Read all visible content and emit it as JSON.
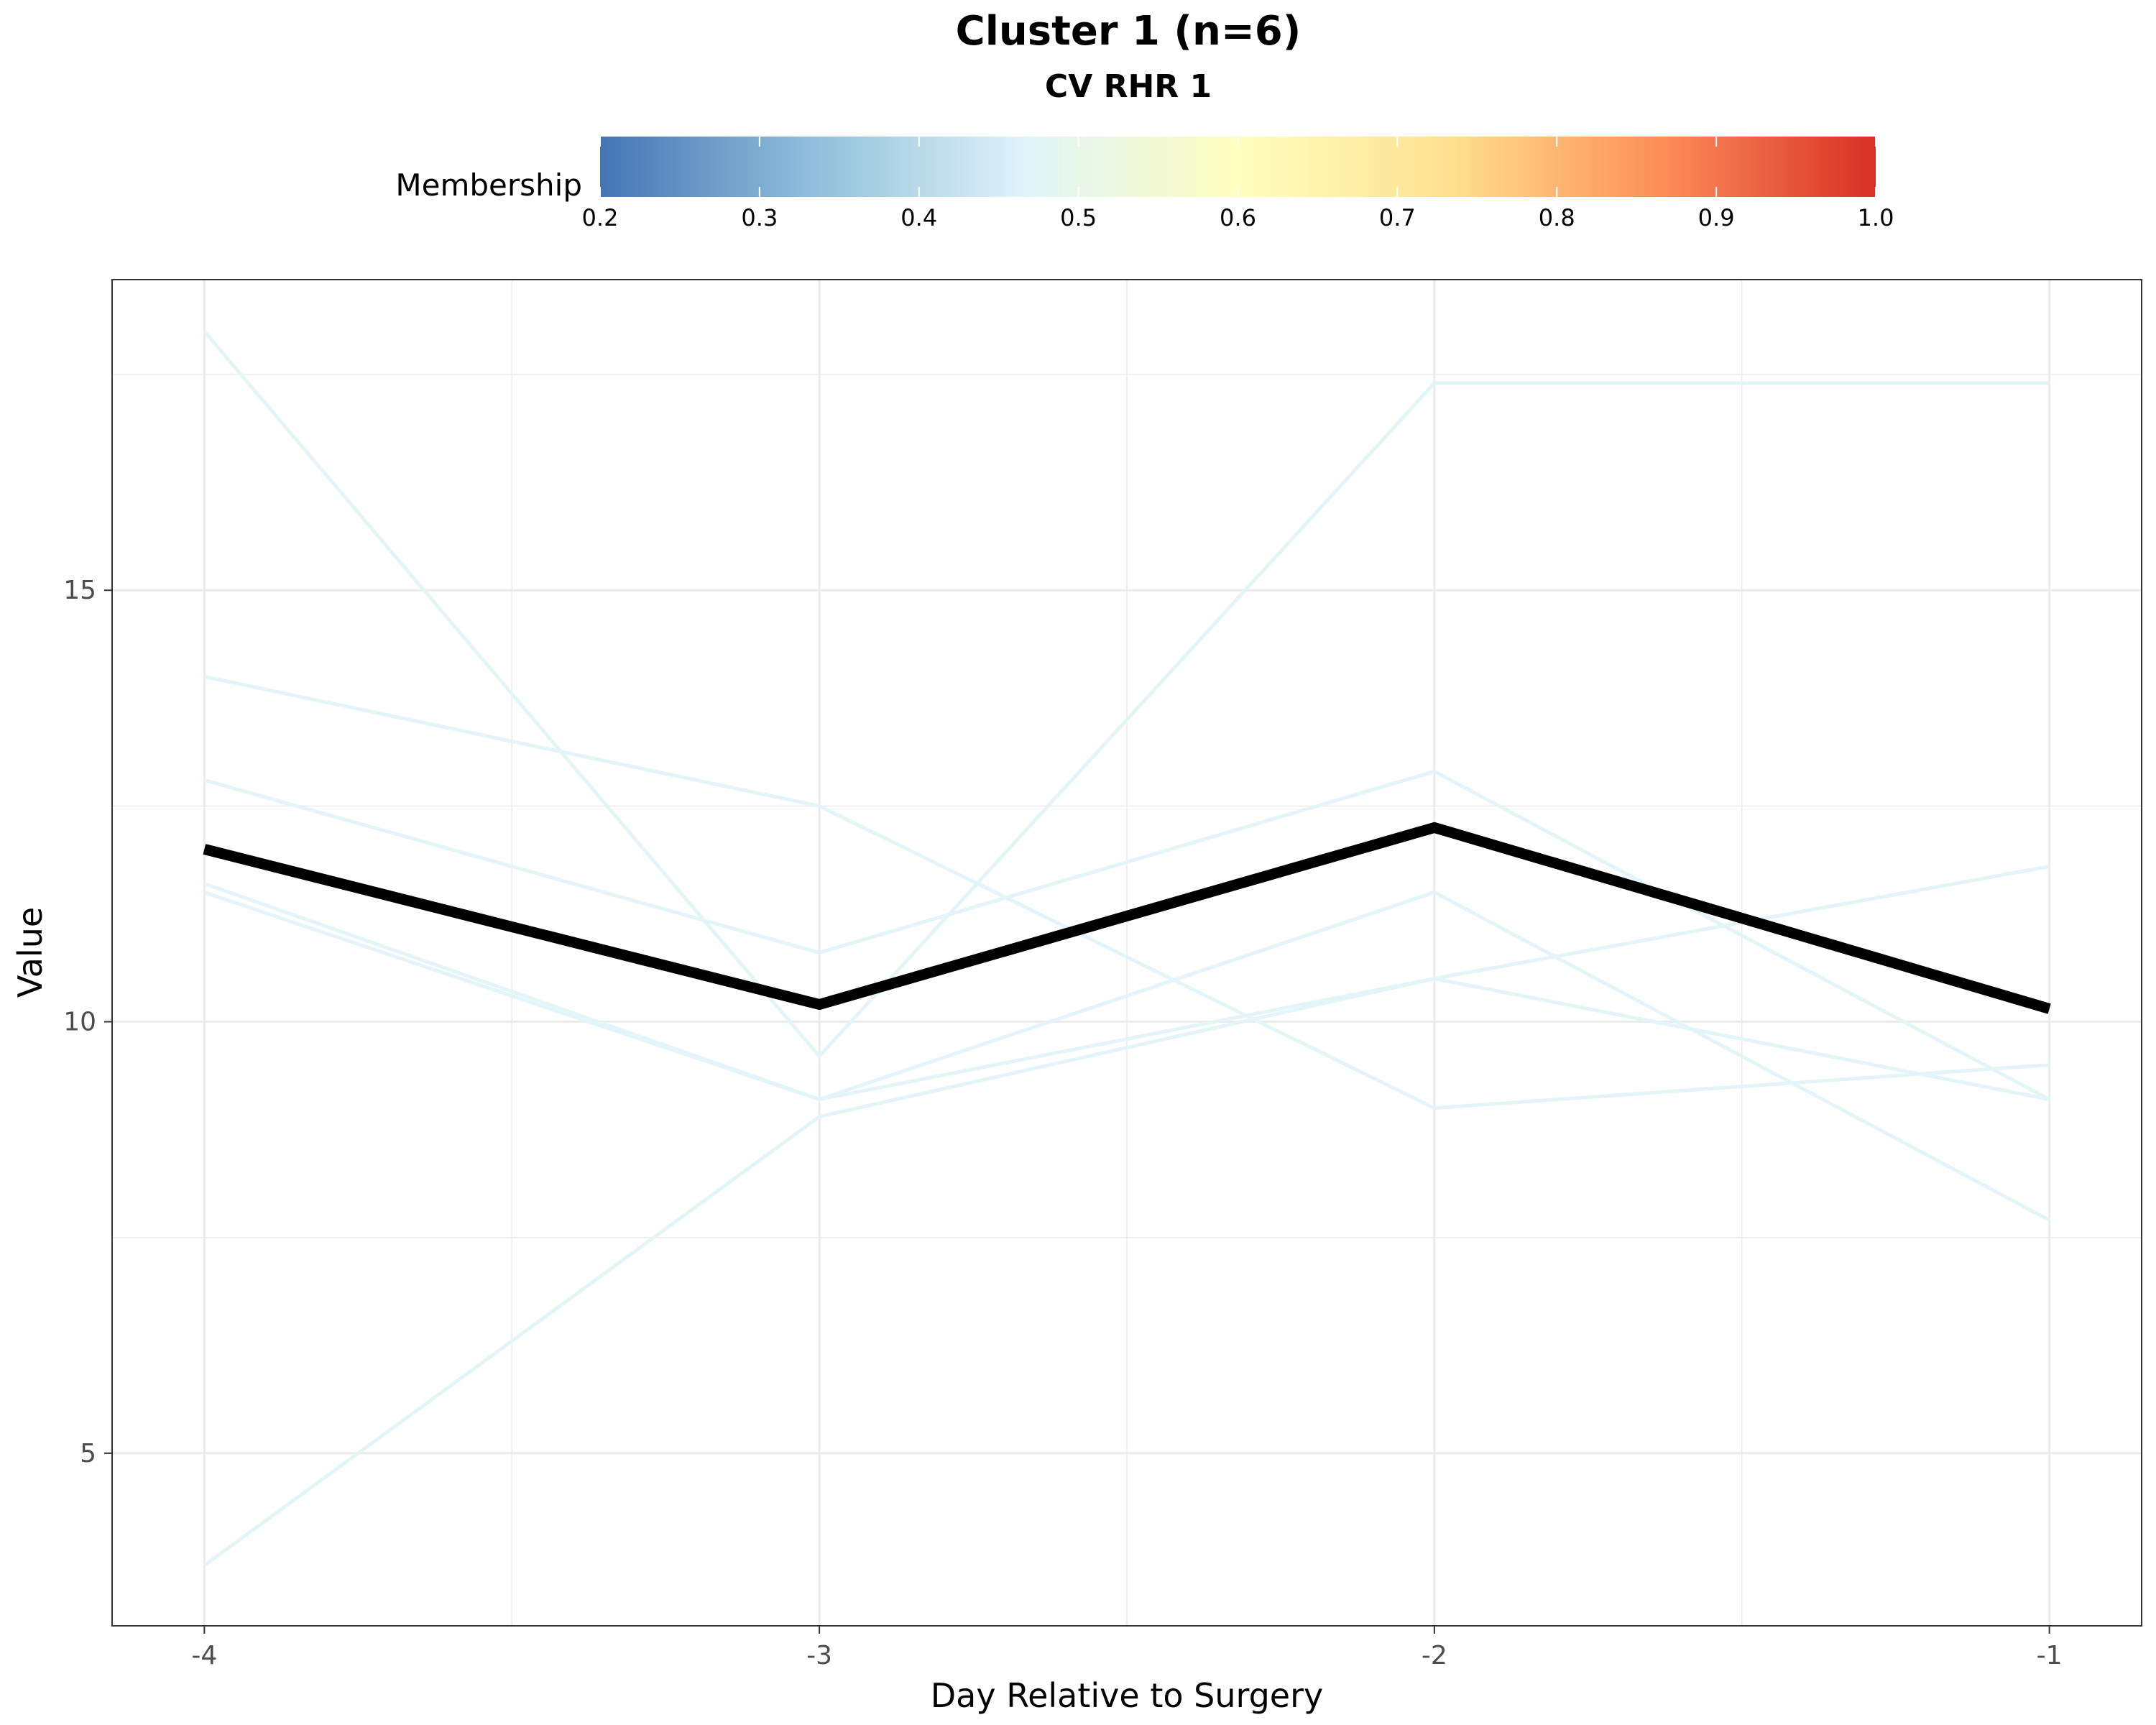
{
  "chart_data": {
    "type": "line",
    "title": "Cluster 1 (n=6)",
    "subtitle": "CV RHR 1",
    "xlabel": "Day Relative to Surgery",
    "ylabel": "Value",
    "x": [
      -4,
      -3,
      -2,
      -1
    ],
    "x_tick_labels": [
      "-4",
      "-3",
      "-2",
      "-1"
    ],
    "xlim": [
      -4.15,
      -0.85
    ],
    "ylim": [
      3.0,
      18.6
    ],
    "y_ticks": [
      5,
      10,
      15
    ],
    "y_tick_labels": [
      "5",
      "10",
      "15"
    ],
    "grid": true,
    "legend": {
      "title": "Membership",
      "placement": "top",
      "range": [
        0.2,
        1.0
      ],
      "tick_labels": [
        "0.2",
        "0.3",
        "0.4",
        "0.5",
        "0.6",
        "0.7",
        "0.8",
        "0.9",
        "1.0"
      ],
      "colors": [
        "#4575b4",
        "#91bfdb",
        "#e0f3f8",
        "#ffffbf",
        "#fee090",
        "#fc8d59",
        "#d73027"
      ]
    },
    "series": [
      {
        "values": [
          18.0,
          9.6,
          17.4,
          17.4
        ],
        "membership": 0.45,
        "color": "#e3f5f8"
      },
      {
        "values": [
          14.0,
          12.5,
          9.0,
          9.5
        ],
        "membership": 0.45,
        "color": "#e3f5f8"
      },
      {
        "values": [
          12.8,
          10.8,
          12.9,
          9.1
        ],
        "membership": 0.45,
        "color": "#e3f5f8"
      },
      {
        "values": [
          11.6,
          9.1,
          11.5,
          7.7
        ],
        "membership": 0.45,
        "color": "#e3f5f8"
      },
      {
        "values": [
          3.7,
          8.9,
          10.5,
          11.8
        ],
        "membership": 0.45,
        "color": "#e3f5f8"
      },
      {
        "values": [
          11.5,
          9.1,
          10.5,
          9.1
        ],
        "membership": 0.45,
        "color": "#e3f5f8"
      }
    ],
    "centroid": {
      "values": [
        12.0,
        10.2,
        12.25,
        10.15
      ],
      "color": "#000000"
    }
  }
}
